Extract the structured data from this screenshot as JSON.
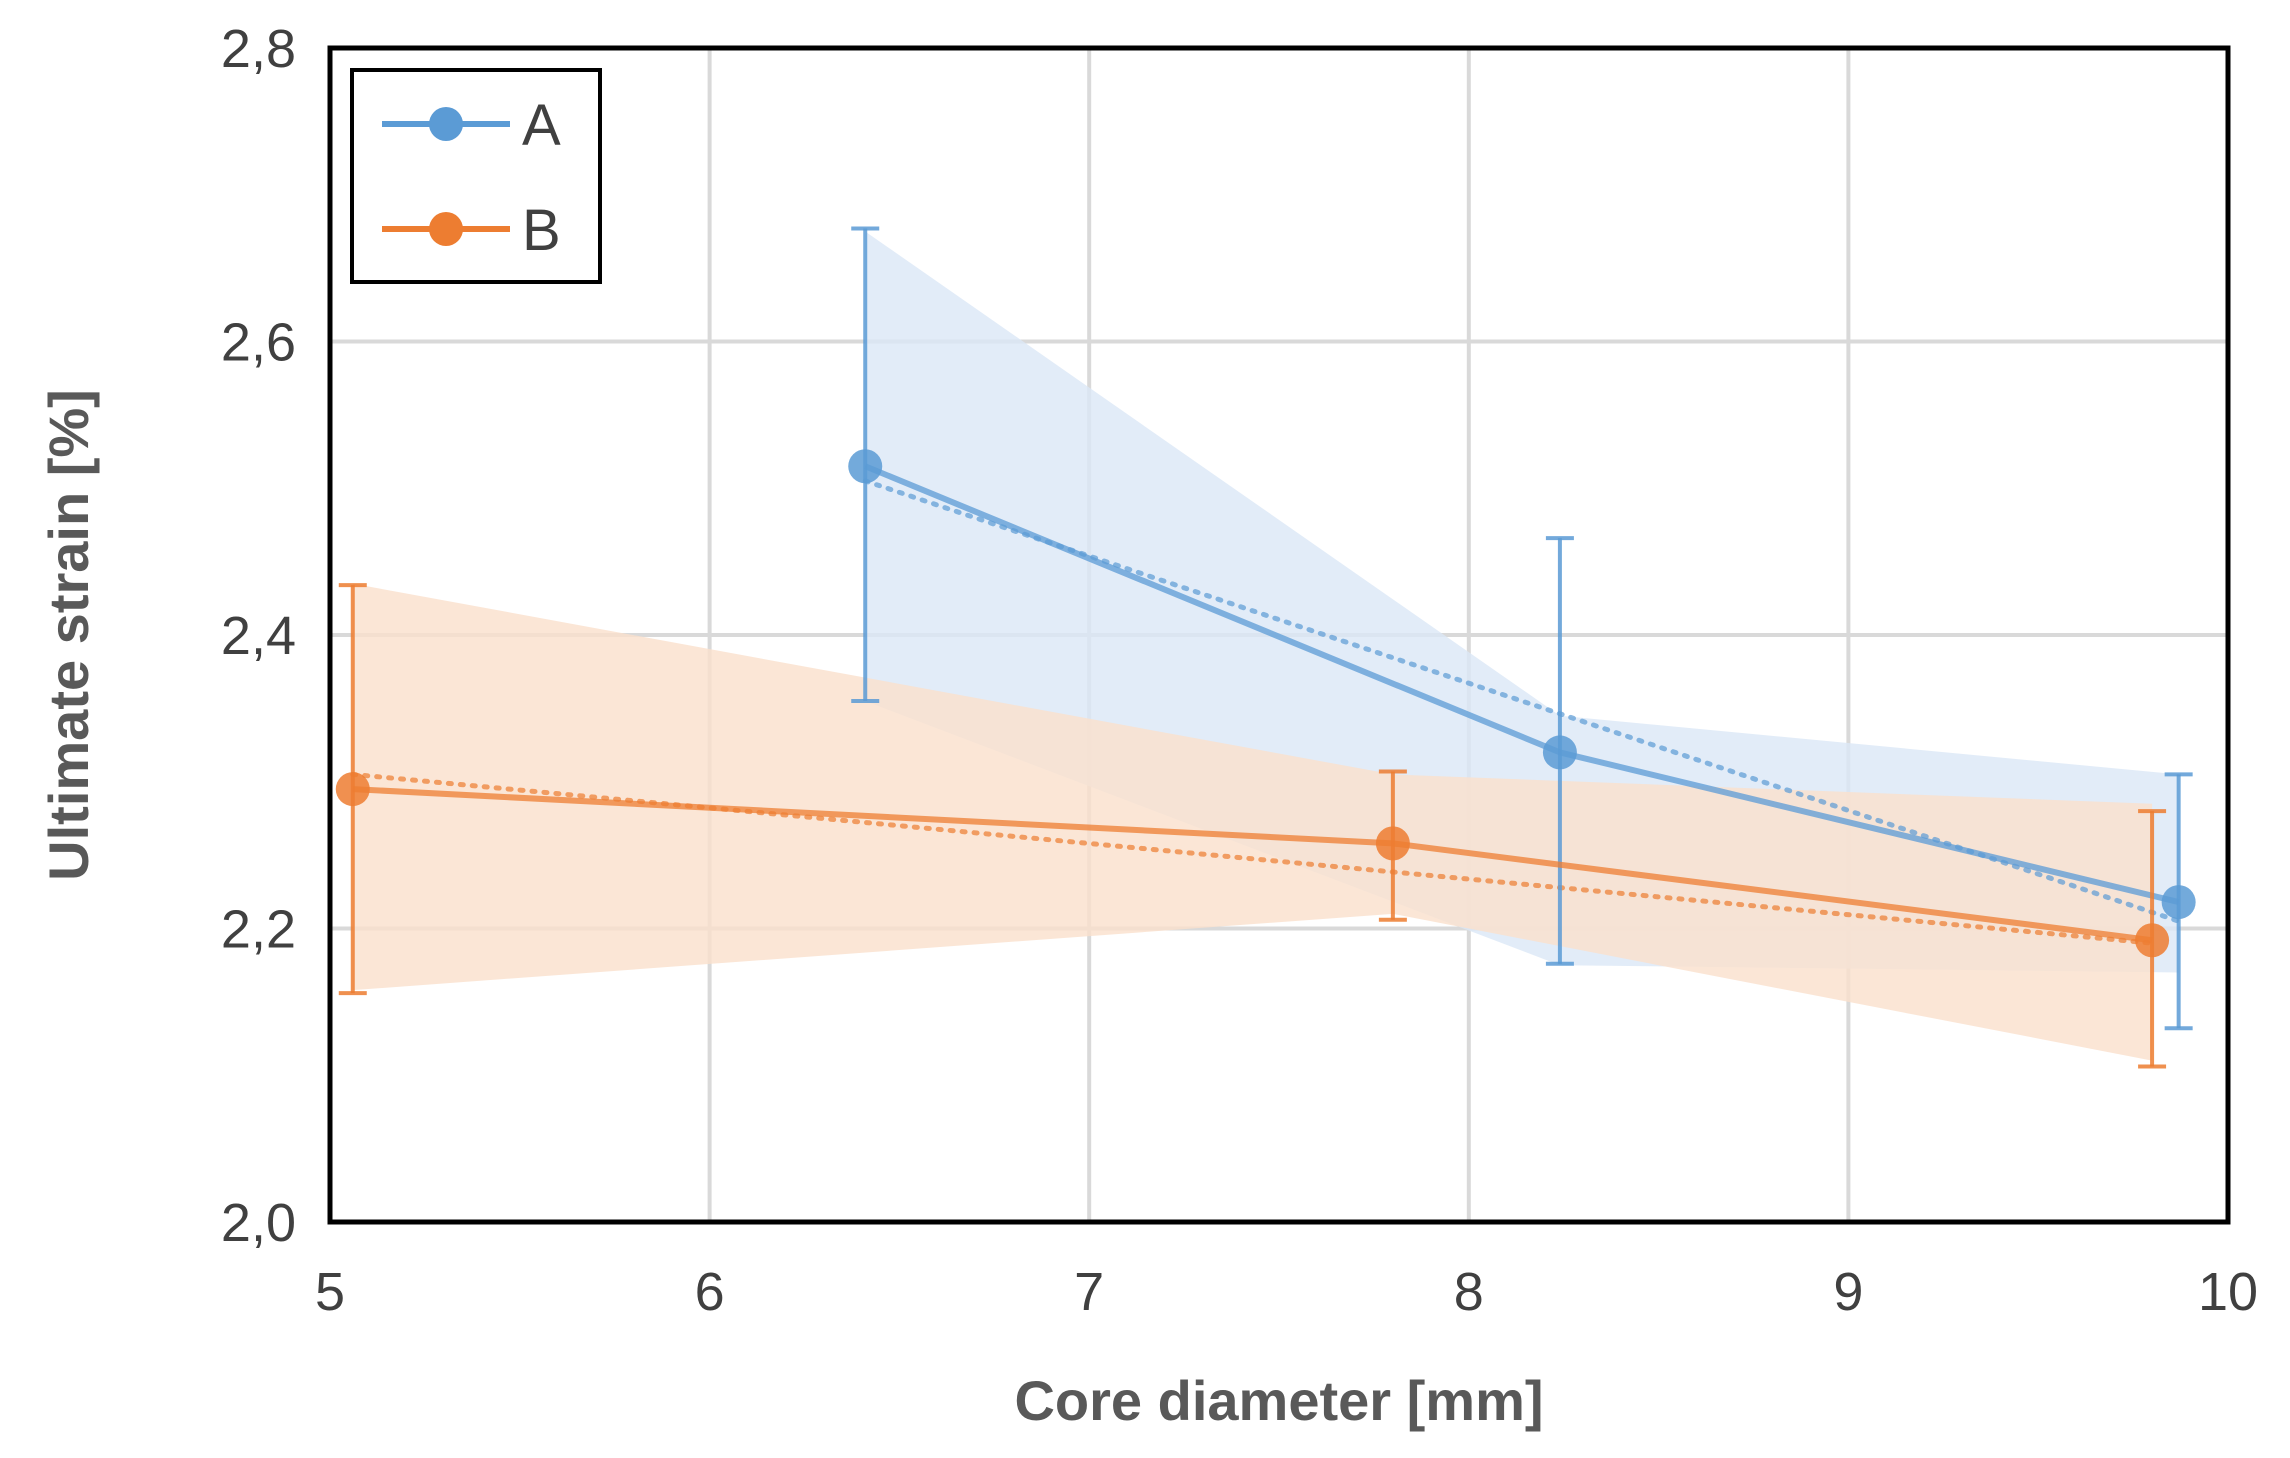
{
  "chart_data": {
    "type": "line",
    "title": "",
    "xlabel": "Core diameter [mm]",
    "ylabel": "Ultimate strain [%]",
    "xlim": [
      5,
      10
    ],
    "ylim": [
      2.0,
      2.8
    ],
    "xticks": [
      5,
      6,
      7,
      8,
      9,
      10
    ],
    "xtick_labels": [
      "5",
      "6",
      "7",
      "8",
      "9",
      "10"
    ],
    "yticks": [
      2.0,
      2.2,
      2.4,
      2.6,
      2.8
    ],
    "ytick_labels": [
      "2,0",
      "2,2",
      "2,4",
      "2,6",
      "2,8"
    ],
    "grid": true,
    "legend_position": "top-left",
    "series": [
      {
        "name": "A",
        "color": "#5b9bd5",
        "band_color": "#dce8f6",
        "x": [
          6.41,
          8.24,
          9.87
        ],
        "y": [
          2.515,
          2.32,
          2.218
        ],
        "err_low": [
          2.355,
          2.176,
          2.132
        ],
        "err_high": [
          2.677,
          2.466,
          2.305
        ],
        "band_upper": [
          2.675,
          2.345,
          2.305
        ],
        "band_lower": [
          2.355,
          2.175,
          2.17
        ],
        "trend_start": [
          6.41,
          2.505
        ],
        "trend_end": [
          9.87,
          2.205
        ]
      },
      {
        "name": "B",
        "color": "#ed7d31",
        "band_color": "#fae0cd",
        "x": [
          5.06,
          7.8,
          9.8
        ],
        "y": [
          2.295,
          2.258,
          2.192
        ],
        "err_low": [
          2.156,
          2.206,
          2.106
        ],
        "err_high": [
          2.434,
          2.307,
          2.28
        ],
        "band_upper": [
          2.435,
          2.305,
          2.285
        ],
        "band_lower": [
          2.158,
          2.21,
          2.11
        ],
        "trend_start": [
          5.06,
          2.305
        ],
        "trend_end": [
          9.8,
          2.19
        ]
      }
    ]
  }
}
